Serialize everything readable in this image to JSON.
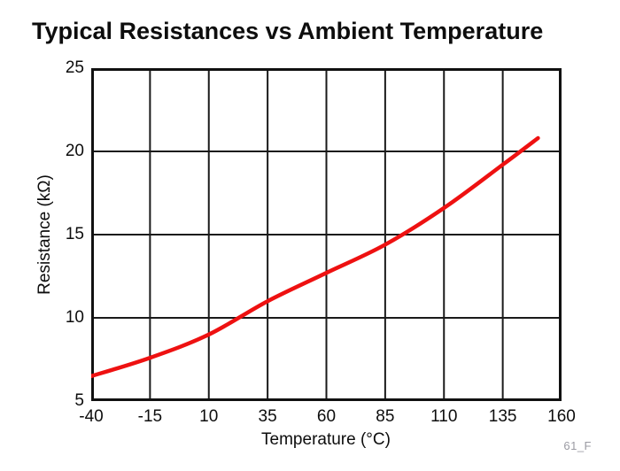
{
  "watermark": "61_F",
  "colors": {
    "curve": "#ee1111",
    "frame": "#111111",
    "grid": "#1a1a1a",
    "text": "#0d0d0d",
    "watermark_text": "#9b9ba3",
    "background": "#ffffff"
  },
  "chart_data": {
    "type": "line",
    "title": "Typical Resistances vs Ambient Temperature",
    "xlabel": "Temperature (°C)",
    "ylabel": "Resistance (kΩ)",
    "xlim": [
      -40,
      160
    ],
    "ylim": [
      5,
      25
    ],
    "x_ticks": [
      -40,
      -15,
      10,
      35,
      60,
      85,
      110,
      135,
      160
    ],
    "y_ticks": [
      5,
      10,
      15,
      20,
      25
    ],
    "grid": true,
    "legend": "none",
    "series": [
      {
        "name": "Typical Resistance",
        "color": "#ee1111",
        "x": [
          -40,
          -15,
          10,
          35,
          60,
          85,
          110,
          135,
          150
        ],
        "y": [
          6.5,
          7.6,
          9.0,
          11.0,
          12.7,
          14.4,
          16.6,
          19.2,
          20.8
        ]
      }
    ]
  }
}
